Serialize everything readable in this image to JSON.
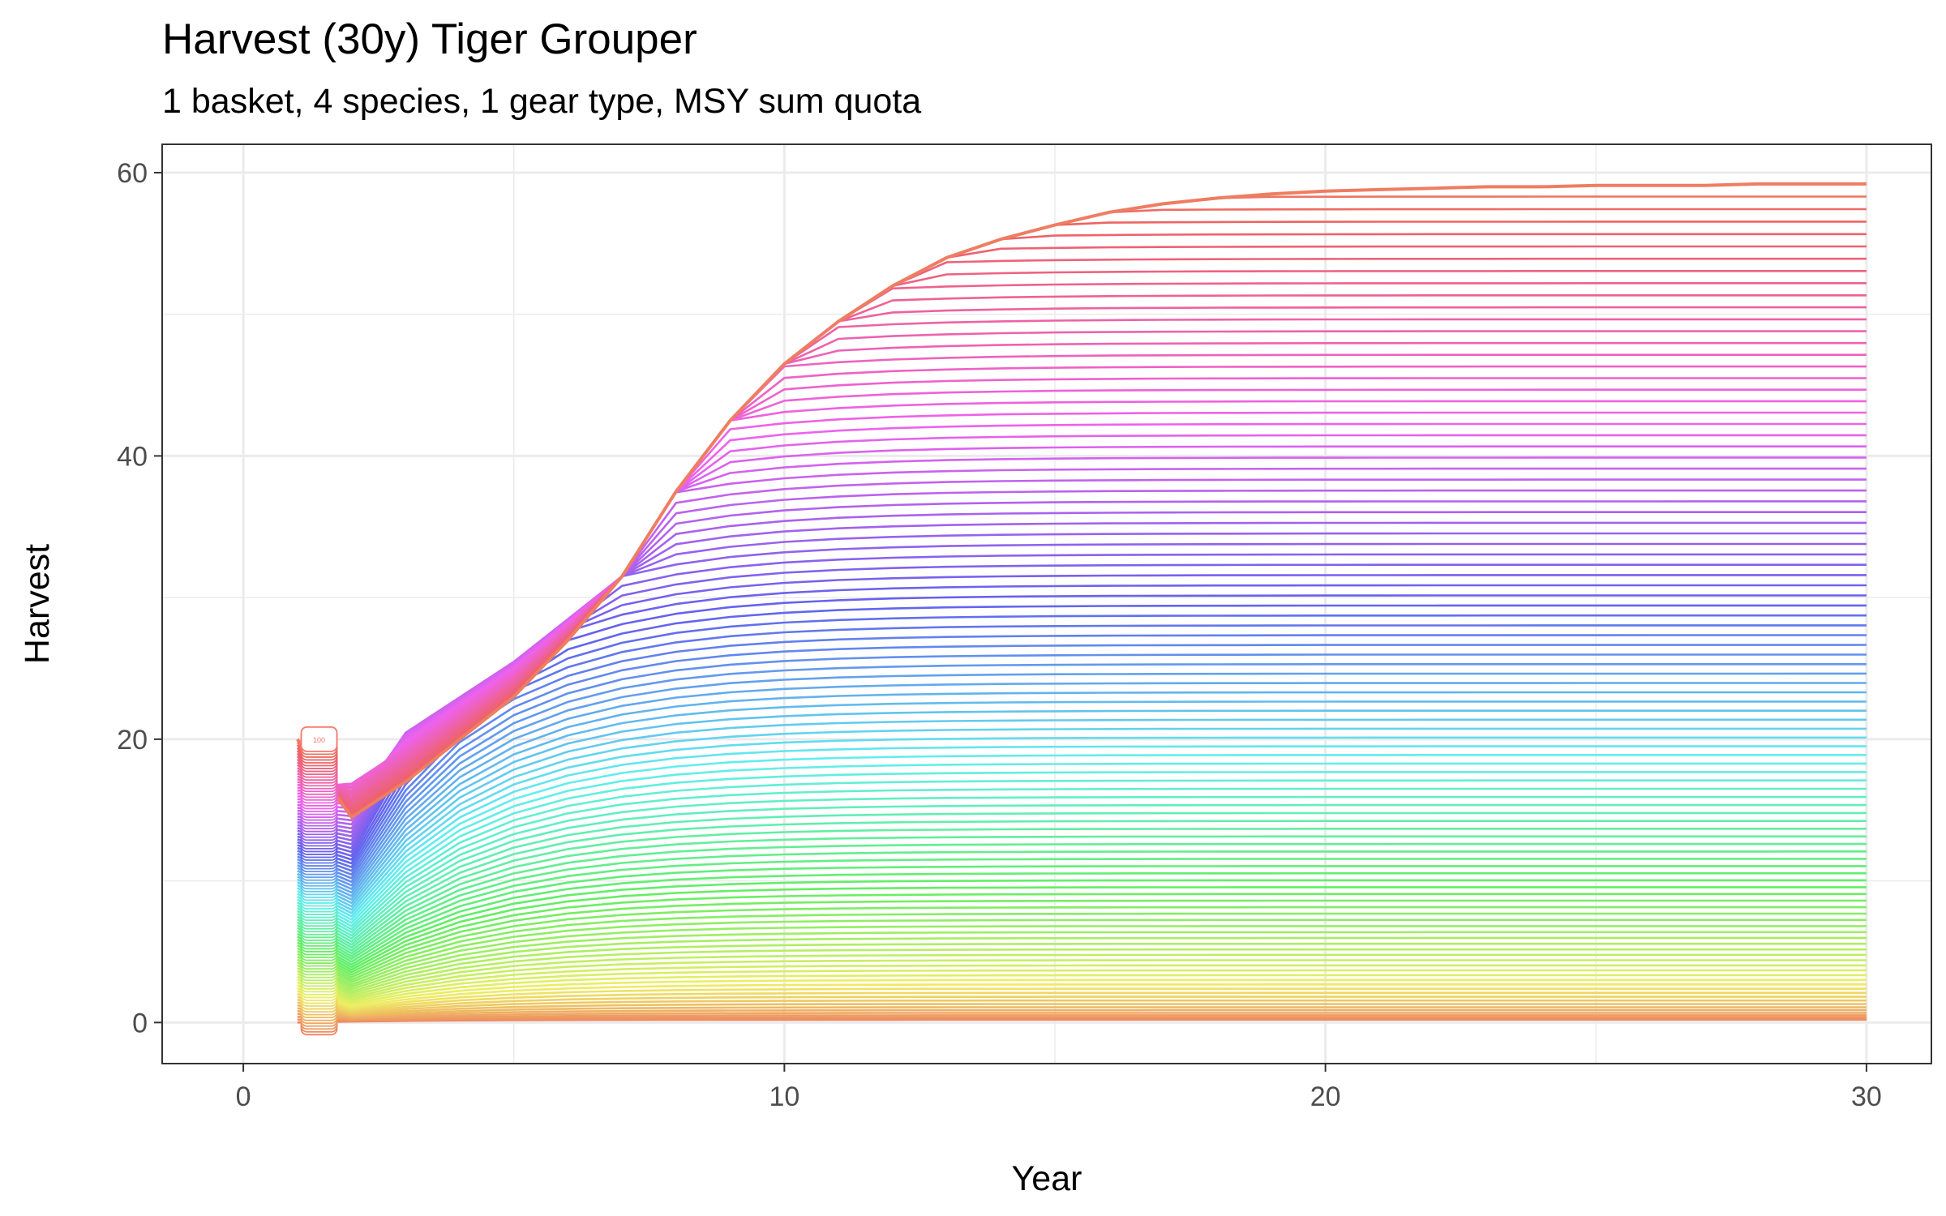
{
  "chart_data": {
    "type": "line",
    "title": "Harvest (30y) Tiger Grouper",
    "subtitle": "1 basket, 4 species, 1 gear type, MSY sum quota",
    "xlabel": "Year",
    "ylabel": "Harvest",
    "xlim": [
      -1.5,
      31.2
    ],
    "ylim": [
      -2.9,
      62.0
    ],
    "x_ticks": [
      0,
      10,
      20,
      30
    ],
    "y_ticks": [
      0,
      20,
      40,
      60
    ],
    "x_tick_labels": [
      "0",
      "10",
      "20",
      "30"
    ],
    "y_tick_labels": [
      "0",
      "20",
      "40",
      "60"
    ],
    "grid": true,
    "legend": "none",
    "n_series": 100,
    "x": [
      1,
      2,
      3,
      4,
      5,
      6,
      7,
      8,
      9,
      10,
      11,
      12,
      13,
      14,
      15,
      16,
      17,
      18,
      19,
      20,
      21,
      22,
      23,
      24,
      25,
      26,
      27,
      28,
      29,
      30
    ],
    "envelope_upper": [
      20.0,
      14.5,
      17.0,
      20.0,
      23.0,
      27.0,
      31.5,
      37.5,
      42.5,
      46.5,
      49.5,
      52.0,
      54.0,
      55.3,
      56.3,
      57.2,
      57.8,
      58.2,
      58.5,
      58.7,
      58.8,
      58.9,
      59.0,
      59.0,
      59.1,
      59.1,
      59.1,
      59.2,
      59.2,
      59.2
    ],
    "bump_upper": [
      20.0,
      18.0,
      20.5,
      23.0,
      25.5,
      28.5
    ],
    "series_final_range": [
      0.2,
      59.2
    ],
    "series_initial_range": [
      0.0,
      20.0
    ],
    "start_marker_label": "100",
    "colors": {
      "first_series": "#F8766D",
      "palette_mid": "#00BA38",
      "palette_blue": "#00B0F6",
      "last_series": "#F8766D",
      "grid": "#ebebeb",
      "panel_border": "#333333"
    }
  }
}
